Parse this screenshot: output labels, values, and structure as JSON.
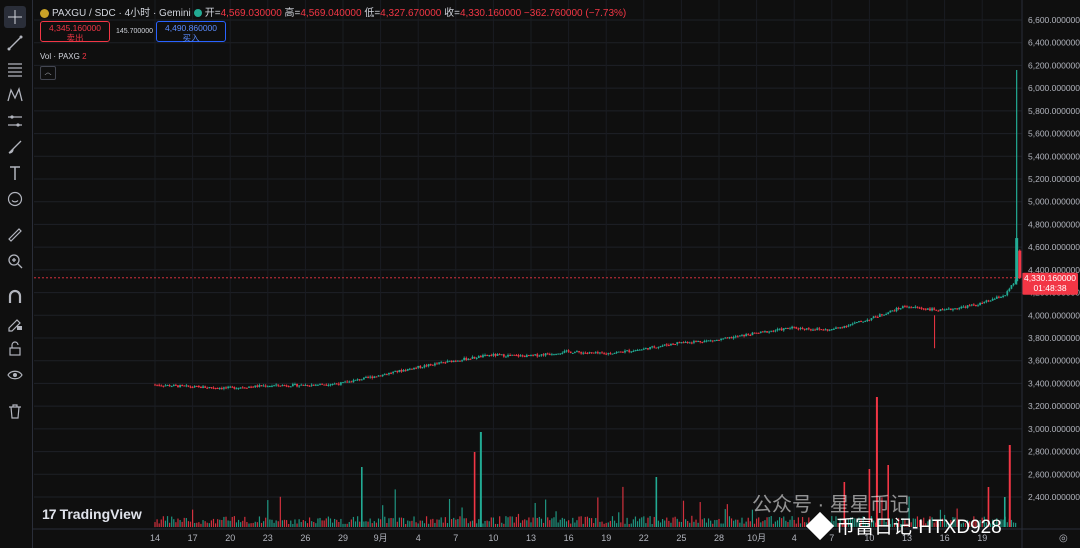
{
  "header": {
    "symbol": "PAXGU / SDC · 4小时 · Gemini",
    "open_label": "开=",
    "open": "4,569.030000",
    "high_label": "高=",
    "high": "4,569.040000",
    "low_label": "低=",
    "low": "4,327.670000",
    "close_label": "收=",
    "close": "4,330.160000",
    "change": "−362.760000 (−7.73%)"
  },
  "sell": {
    "price": "4,345.160000",
    "label": "卖出"
  },
  "spread": "145.700000",
  "buy": {
    "price": "4,490.860000",
    "label": "买入"
  },
  "volume_label": {
    "text": "Vol · PAXG",
    "value": "2"
  },
  "collapse_icon": "chevron-up-icon",
  "left_toolbar_icons": [
    "crosshair-icon",
    "trendline-icon",
    "fib-icon",
    "pattern-icon",
    "measure-lines-icon",
    "brush-icon",
    "text-icon",
    "emoji-icon",
    "ruler-icon",
    "zoom-in-icon",
    "magnet-icon",
    "lock-drawing-icon",
    "unlock-icon",
    "eye-icon",
    "trash-icon"
  ],
  "price_axis": {
    "ticks": [
      "6,600.000000",
      "6,400.000000",
      "6,200.000000",
      "6,000.000000",
      "5,800.000000",
      "5,600.000000",
      "5,400.000000",
      "5,200.000000",
      "5,000.000000",
      "4,800.000000",
      "4,600.000000",
      "4,400.000000",
      "4,200.000000",
      "4,000.000000",
      "3,800.000000",
      "3,600.000000",
      "3,400.000000",
      "3,200.000000",
      "3,000.000000",
      "2,800.000000",
      "2,600.000000",
      "2,400.000000"
    ],
    "current_price": "4,330.160000",
    "countdown": "01:48:38"
  },
  "time_axis": {
    "ticks": [
      "14",
      "17",
      "20",
      "23",
      "26",
      "29",
      "9月",
      "4",
      "7",
      "10",
      "13",
      "16",
      "19",
      "22",
      "25",
      "28",
      "10月",
      "4",
      "7",
      "10",
      "13",
      "16",
      "19"
    ]
  },
  "branding": {
    "logo": "TradingView",
    "logo_mark": "17"
  },
  "watermark": {
    "line1": "公众号 · 星星币记",
    "line2": "币富日记-HTXD928"
  },
  "colors": {
    "up": "#22ab94",
    "down": "#f23645",
    "background": "#0f0f0f",
    "accent": "#2962ff"
  },
  "chart_data": {
    "type": "candlestick",
    "title": "PAXGU / SDC · 4小时 · Gemini",
    "ylim": [
      2300,
      6700
    ],
    "y_ticks": [
      6600,
      6400,
      6200,
      6000,
      5800,
      5600,
      5400,
      5200,
      5000,
      4800,
      4600,
      4400,
      4200,
      4000,
      3800,
      3600,
      3400,
      3200,
      3000,
      2800,
      2600,
      2400
    ],
    "x_tick_labels": [
      "14",
      "17",
      "20",
      "23",
      "26",
      "29",
      "9月",
      "4",
      "7",
      "10",
      "13",
      "16",
      "19",
      "22",
      "25",
      "28",
      "10月",
      "4",
      "7",
      "10",
      "13",
      "16",
      "19"
    ],
    "last_price": 4330.16,
    "grid": true,
    "price_path": [
      {
        "day": 0,
        "price": 3390
      },
      {
        "day": 3,
        "price": 3370
      },
      {
        "day": 6,
        "price": 3360
      },
      {
        "day": 9,
        "price": 3380
      },
      {
        "day": 12,
        "price": 3385
      },
      {
        "day": 15,
        "price": 3400
      },
      {
        "day": 18,
        "price": 3470
      },
      {
        "day": 21,
        "price": 3540
      },
      {
        "day": 24,
        "price": 3600
      },
      {
        "day": 27,
        "price": 3650
      },
      {
        "day": 30,
        "price": 3640
      },
      {
        "day": 33,
        "price": 3680
      },
      {
        "day": 36,
        "price": 3660
      },
      {
        "day": 39,
        "price": 3700
      },
      {
        "day": 42,
        "price": 3760
      },
      {
        "day": 45,
        "price": 3780
      },
      {
        "day": 48,
        "price": 3840
      },
      {
        "day": 51,
        "price": 3890
      },
      {
        "day": 54,
        "price": 3870
      },
      {
        "day": 57,
        "price": 3960
      },
      {
        "day": 60,
        "price": 4080
      },
      {
        "day": 63,
        "price": 4040
      },
      {
        "day": 66,
        "price": 4100
      },
      {
        "day": 68,
        "price": 4180
      },
      {
        "day": 69,
        "price": 4330
      }
    ],
    "spike": {
      "high": 6160,
      "low": 4270
    },
    "volume_spikes": [
      {
        "day": 26,
        "volume": 9
      },
      {
        "day": 57.6,
        "volume": 8.5
      },
      {
        "day": 68.2,
        "volume": 7
      }
    ]
  }
}
